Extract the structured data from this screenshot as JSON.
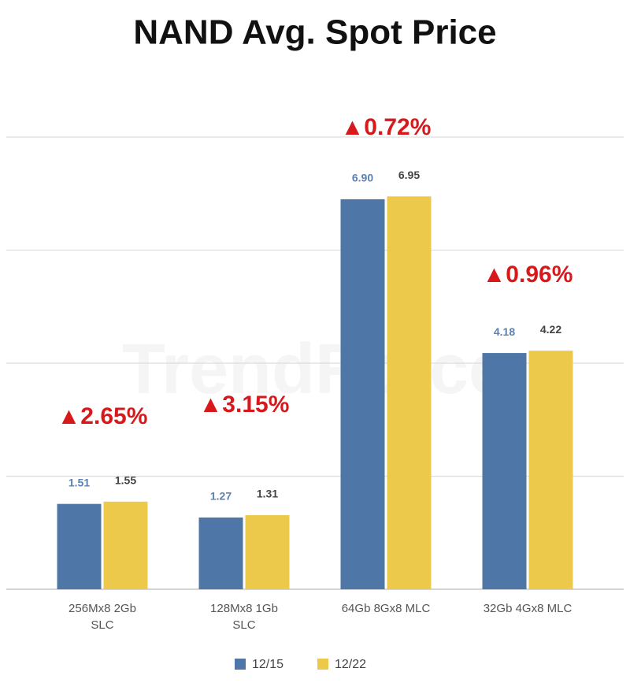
{
  "chart_data": {
    "type": "bar",
    "title": "NAND Avg. Spot Price",
    "watermark": "TrendForce",
    "categories": [
      "256Mx8 2Gb\nSLC",
      "128Mx8 1Gb\nSLC",
      "64Gb 8Gx8 MLC",
      "32Gb 4Gx8 MLC"
    ],
    "series": [
      {
        "name": "12/15",
        "color": "#4e76a6",
        "label_color": "#5b82b0",
        "values": [
          1.51,
          1.27,
          6.9,
          4.18
        ],
        "value_labels": [
          "1.51",
          "1.27",
          "6.90",
          "4.18"
        ]
      },
      {
        "name": "12/22",
        "color": "#ecc94b",
        "label_color": "#444444",
        "values": [
          1.55,
          1.31,
          6.95,
          4.22
        ],
        "value_labels": [
          "1.55",
          "1.31",
          "6.95",
          "4.22"
        ]
      }
    ],
    "annotations": [
      "▲2.65%",
      "▲3.15%",
      "▲0.72%",
      "▲0.96%"
    ],
    "annotation_color": "#d7191c",
    "ylim": [
      0,
      8
    ],
    "yticks": [
      0,
      2,
      4,
      6,
      8
    ],
    "grid": true,
    "legend": "bottom"
  }
}
